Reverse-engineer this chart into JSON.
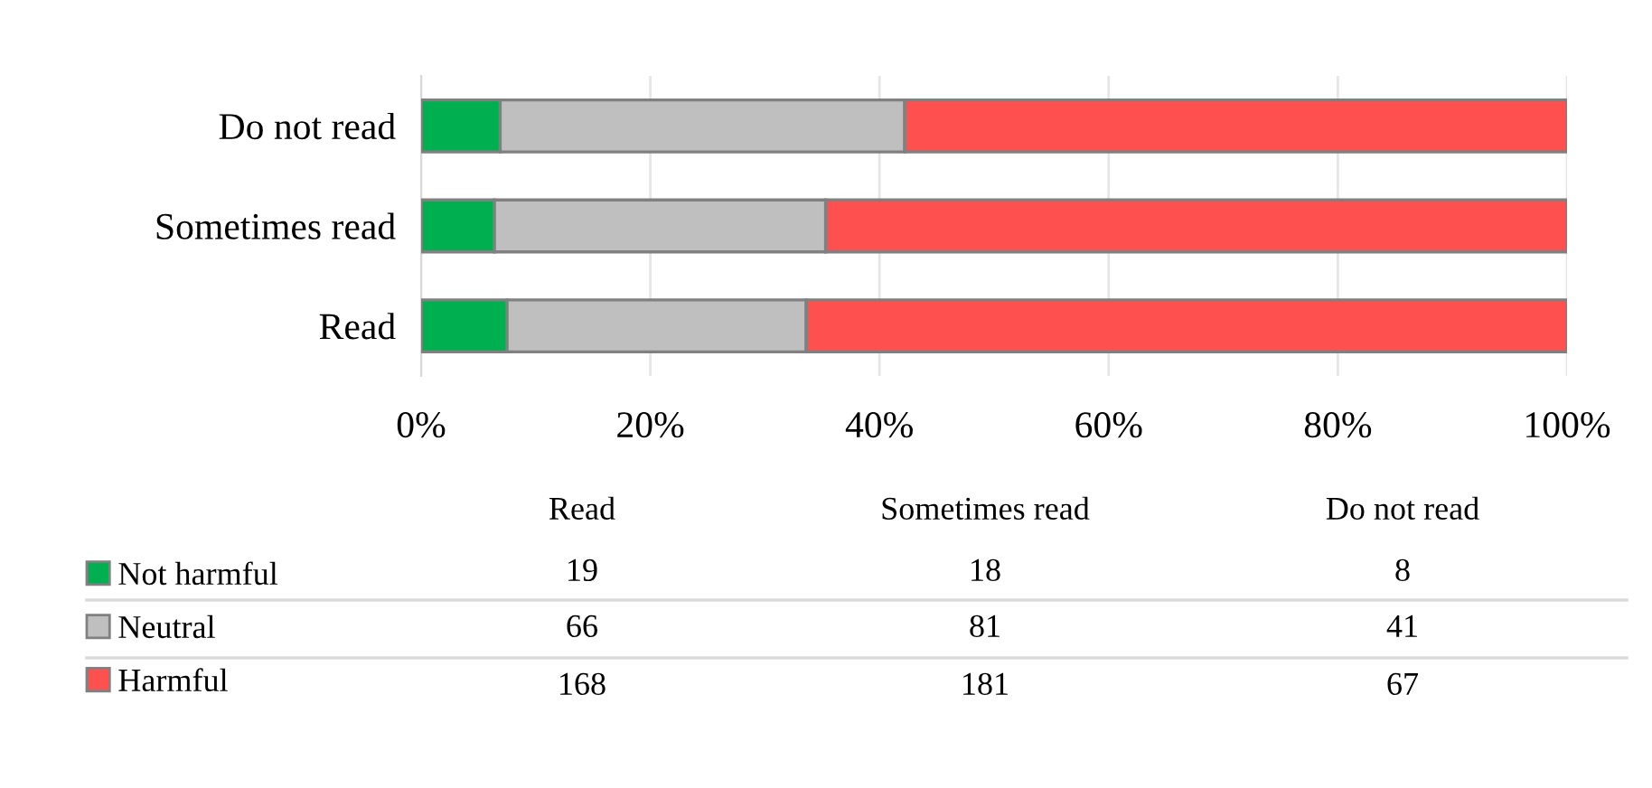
{
  "chart_data": {
    "type": "bar",
    "orientation": "horizontal",
    "stacked": true,
    "categories": [
      "Do not read",
      "Sometimes read",
      "Read"
    ],
    "series": [
      {
        "name": "Not harmful",
        "color": "#00b050",
        "values": [
          6.9,
          6.4,
          7.5
        ]
      },
      {
        "name": "Neutral",
        "color": "#bfbfbf",
        "values": [
          35.3,
          28.9,
          26.1
        ]
      },
      {
        "name": "Harmful",
        "color": "#ff5050",
        "values": [
          57.8,
          64.7,
          66.4
        ]
      }
    ],
    "xlim": [
      0,
      100
    ],
    "xticks": [
      {
        "value": 0,
        "label": "0%"
      },
      {
        "value": 20,
        "label": "20%"
      },
      {
        "value": 40,
        "label": "40%"
      },
      {
        "value": 60,
        "label": "60%"
      },
      {
        "value": 80,
        "label": "80%"
      },
      {
        "value": 100,
        "label": "100%"
      }
    ],
    "grid": "x",
    "legend": "bottom left",
    "annotations": [
      "19",
      "18",
      "8",
      "66",
      "81",
      "41",
      "168",
      "181",
      "67"
    ]
  }
}
